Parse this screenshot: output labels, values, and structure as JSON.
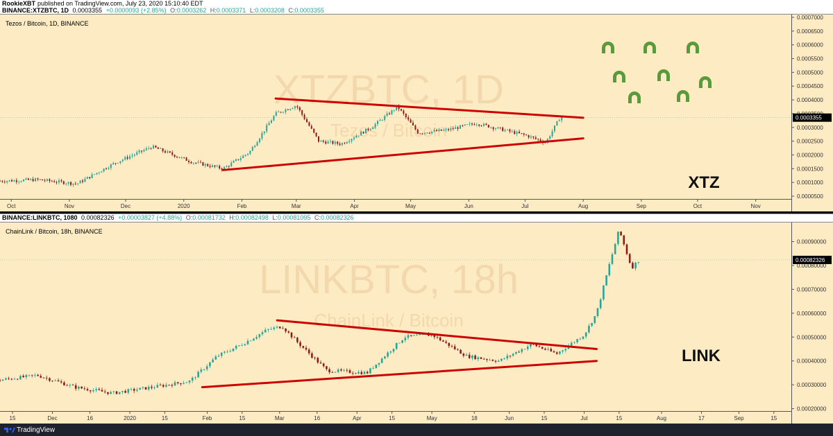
{
  "header": {
    "author": "RookieXBT",
    "published": "published on TradingView.com, July 23, 2020 15:10:40 EDT"
  },
  "footer": {
    "brand": "TradingView",
    "logo_icon": "tradingview-logo-icon"
  },
  "colors": {
    "bg": "#fdebc3",
    "up": "#26a69a",
    "down": "#8b1a1a",
    "trend": "#cc0000",
    "magnet": "#5a9a3a",
    "axis_bg": "#fdebc3"
  },
  "panels": [
    {
      "id": "xtz",
      "symbol_line": "BINANCE:XTZBTC, 1D",
      "ohlc": {
        "last": "0.0003355",
        "change": "+0.0000093 (+2.85%)",
        "o": "0.0003262",
        "h": "0.0003371",
        "l": "0.0003208",
        "c": "0.0003355"
      },
      "title": "Tezos / Bitcoin, 1D, BINANCE",
      "watermark_main": "XTZBTC, 1D",
      "watermark_sub": "Tezos / Bitcoin",
      "label": "XTZ",
      "price_label": "0.0003355",
      "magnet_icons": 8
    },
    {
      "id": "link",
      "symbol_line": "BINANCE:LINKBTC, 1080",
      "ohlc": {
        "last": "0.00082326",
        "change": "+0.00003827 (+4.88%)",
        "o": "0.00081732",
        "h": "0.00082498",
        "l": "0.00081095",
        "c": "0.00082326"
      },
      "title": "ChainLink / Bitcoin, 18h, BINANCE",
      "watermark_main": "LINKBTC, 18h",
      "watermark_sub": "ChainLink / Bitcoin",
      "label": "LINK",
      "price_label": "0.00082326",
      "magnet_icons": 0
    }
  ],
  "chart_data": [
    {
      "type": "candlestick",
      "title": "Tezos / Bitcoin, 1D, BINANCE",
      "y_ticks": [
        "0.0007000",
        "0.0006500",
        "0.0006000",
        "0.0005500",
        "0.0005000",
        "0.0004500",
        "0.0004000",
        "0.0003500",
        "0.0003000",
        "0.0002500",
        "0.0002000",
        "0.0001500",
        "0.0001000",
        "0.0000500"
      ],
      "ylim": [
        4e-05,
        0.00071
      ],
      "x_ticks": [
        "Oct",
        "Nov",
        "Dec",
        "2020",
        "Feb",
        "Mar",
        "Apr",
        "May",
        "Jun",
        "Jul",
        "Aug",
        "Sep",
        "Oct",
        "Nov"
      ],
      "x_tick_dates": [
        "2019-10-01",
        "2019-11-01",
        "2019-12-01",
        "2020-01-01",
        "2020-02-01",
        "2020-03-01",
        "2020-04-01",
        "2020-05-01",
        "2020-06-01",
        "2020-07-01",
        "2020-08-01",
        "2020-09-01",
        "2020-10-01",
        "2020-11-01"
      ],
      "xlim": [
        "2019-09-25",
        "2020-11-20"
      ],
      "series": [
        {
          "x": [
            "2019-09-25",
            "2019-10-15",
            "2019-11-05",
            "2019-11-25",
            "2019-12-15",
            "2020-01-05",
            "2020-01-22",
            "2020-02-05",
            "2020-02-19",
            "2020-03-01",
            "2020-03-13",
            "2020-03-25",
            "2020-04-10",
            "2020-04-24",
            "2020-05-05",
            "2020-05-20",
            "2020-06-05",
            "2020-06-20",
            "2020-07-02",
            "2020-07-12",
            "2020-07-20",
            "2020-07-23"
          ],
          "values": [
            0.000105,
            0.00011,
            9.5e-05,
            0.00017,
            0.00023,
            0.000175,
            0.00015,
            0.00021,
            0.00035,
            0.00038,
            0.00025,
            0.00024,
            0.0003,
            0.000375,
            0.00028,
            0.00029,
            0.000315,
            0.00029,
            0.00027,
            0.000245,
            0.00034,
            0.0003355
          ]
        }
      ],
      "trendlines": [
        {
          "from": [
            "2020-02-19",
            0.000405
          ],
          "to": [
            "2020-08-01",
            0.000335
          ]
        },
        {
          "from": [
            "2020-01-22",
            0.000145
          ],
          "to": [
            "2020-08-01",
            0.00026
          ]
        }
      ],
      "last_price": 0.0003355
    },
    {
      "type": "candlestick",
      "title": "ChainLink / Bitcoin, 18h, BINANCE",
      "y_ticks": [
        "0.00090000",
        "0.00080000",
        "0.00070000",
        "0.00060000",
        "0.00050000",
        "0.00040000",
        "0.00030000",
        "0.00020000"
      ],
      "ylim": [
        0.00019,
        0.00098
      ],
      "x_ticks": [
        "15",
        "Dec",
        "16",
        "2020",
        "15",
        "Feb",
        "15",
        "Mar",
        "16",
        "Apr",
        "15",
        "May",
        "18",
        "Jun",
        "15",
        "Jul",
        "15",
        "Aug",
        "17",
        "Sep",
        "15"
      ],
      "x_tick_dates": [
        "2019-11-15",
        "2019-12-01",
        "2019-12-16",
        "2020-01-01",
        "2020-01-15",
        "2020-02-01",
        "2020-02-15",
        "2020-03-01",
        "2020-03-16",
        "2020-04-01",
        "2020-04-15",
        "2020-05-01",
        "2020-05-18",
        "2020-06-01",
        "2020-06-15",
        "2020-07-01",
        "2020-07-15",
        "2020-08-01",
        "2020-08-17",
        "2020-09-01",
        "2020-09-15"
      ],
      "xlim": [
        "2019-11-10",
        "2020-09-22"
      ],
      "series": [
        {
          "x": [
            "2019-11-10",
            "2019-11-25",
            "2019-12-10",
            "2019-12-25",
            "2020-01-10",
            "2020-01-25",
            "2020-02-05",
            "2020-02-15",
            "2020-02-25",
            "2020-03-02",
            "2020-03-08",
            "2020-03-20",
            "2020-04-05",
            "2020-04-20",
            "2020-05-01",
            "2020-05-15",
            "2020-05-28",
            "2020-06-10",
            "2020-06-20",
            "2020-07-01",
            "2020-07-06",
            "2020-07-11",
            "2020-07-15",
            "2020-07-20",
            "2020-07-23"
          ],
          "values": [
            0.00032,
            0.00034,
            0.00029,
            0.000265,
            0.00029,
            0.000315,
            0.00042,
            0.00047,
            0.00053,
            0.000545,
            0.00048,
            0.00036,
            0.00035,
            0.0005,
            0.00051,
            0.00042,
            0.0004,
            0.00047,
            0.00043,
            0.00051,
            0.0006,
            0.0008,
            0.00095,
            0.00079,
            0.00082326
          ]
        }
      ],
      "trendlines": [
        {
          "from": [
            "2020-02-29",
            0.00057
          ],
          "to": [
            "2020-07-06",
            0.00045
          ]
        },
        {
          "from": [
            "2020-01-30",
            0.00029
          ],
          "to": [
            "2020-07-06",
            0.0004
          ]
        }
      ],
      "last_price": 0.00082326
    }
  ]
}
